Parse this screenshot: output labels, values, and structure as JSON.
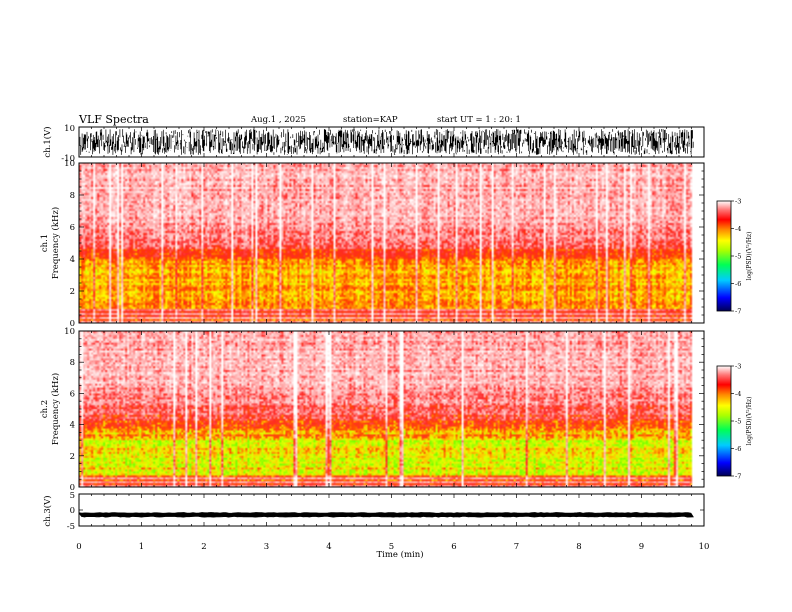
{
  "chart_data": [
    {
      "type": "line",
      "panel": "ch1-waveform",
      "title": "VLF Spectra",
      "header": {
        "date": "Aug.1 , 2025",
        "station": "station=KAP",
        "start": "start UT = 1 : 20: 1"
      },
      "ylabel": "ch.1(V)",
      "ylim": [
        -10,
        10
      ],
      "yticks": [
        "10",
        "-10"
      ],
      "xlim": [
        0,
        10
      ],
      "signal_range": [
        -10,
        10
      ],
      "trace_end_min": 9.83
    },
    {
      "type": "heatmap",
      "panel": "ch1-spectrogram",
      "ylabel": "ch.1\nFrequency (kHz)",
      "ylabel_lines": [
        "ch.1",
        "Frequency (kHz)"
      ],
      "ylim": [
        0,
        10
      ],
      "yticks": [
        "0",
        "2",
        "4",
        "6",
        "8",
        "10"
      ],
      "xlim": [
        0,
        10
      ],
      "bands_khz": [
        {
          "range": [
            3.6,
            10
          ],
          "level": "low (white-pink)"
        },
        {
          "range": [
            2.9,
            4.6
          ],
          "level": "medium (red)"
        },
        {
          "range": [
            0.9,
            3.5
          ],
          "level": "high (yellow-orange)"
        },
        {
          "range": [
            0.0,
            0.8
          ],
          "level": "medium (red, striped)"
        }
      ],
      "colorbar": {
        "label": "log(PSD)(V²/Hz)",
        "range": [
          -7,
          -3
        ],
        "ticks": [
          "-3",
          "-4",
          "-5",
          "-6",
          "-7"
        ]
      }
    },
    {
      "type": "heatmap",
      "panel": "ch2-spectrogram",
      "ylabel": "ch.2\nFrequency (kHz)",
      "ylabel_lines": [
        "ch.2",
        "Frequency (kHz)"
      ],
      "ylim": [
        0,
        10
      ],
      "yticks": [
        "0",
        "2",
        "4",
        "6",
        "8",
        "10"
      ],
      "xlim": [
        0,
        10
      ],
      "bands_khz": [
        {
          "range": [
            3.3,
            10
          ],
          "level": "low (white-pink)"
        },
        {
          "range": [
            2.6,
            4.2
          ],
          "level": "medium (red)"
        },
        {
          "range": [
            0.7,
            3.1
          ],
          "level": "high (yellow-green)"
        },
        {
          "range": [
            0.0,
            0.6
          ],
          "level": "medium (red, striped)"
        }
      ],
      "colorbar": {
        "label": "log(PSD)(V²/Hz)",
        "range": [
          -7,
          -3
        ],
        "ticks": [
          "-3",
          "-4",
          "-5",
          "-6",
          "-7"
        ]
      }
    },
    {
      "type": "line",
      "panel": "ch3-waveform",
      "ylabel": "ch.3(V)",
      "ylim": [
        -5,
        5
      ],
      "yticks": [
        "5",
        "0",
        "-5"
      ],
      "xlim": [
        0,
        10
      ],
      "signal_mean": -1.5,
      "signal_range": [
        -2.0,
        -1.0
      ],
      "trace_end_min": 9.83,
      "xlabel": "Time (min)",
      "xticks": [
        "0",
        "1",
        "2",
        "3",
        "4",
        "5",
        "6",
        "7",
        "8",
        "9",
        "10"
      ]
    }
  ],
  "colors": {
    "axis": "#000000",
    "trace": "#000000",
    "colormap": [
      "#000066",
      "#0000ff",
      "#00aaff",
      "#00ff66",
      "#66ff00",
      "#ffff00",
      "#ff8800",
      "#ff0000",
      "#ff5555",
      "#ffbbbb",
      "#ffffff"
    ]
  }
}
